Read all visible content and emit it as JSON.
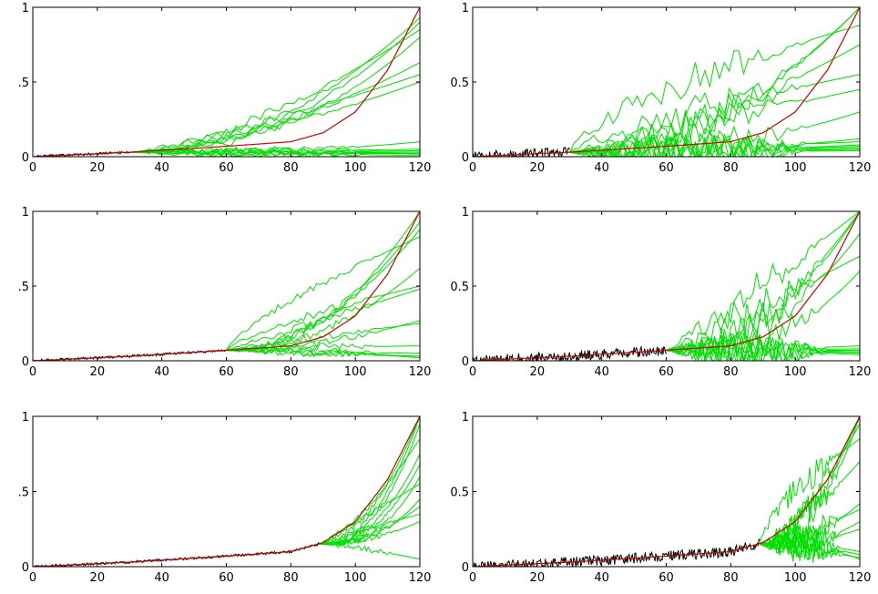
{
  "figure": {
    "colors": {
      "observed": "#000000",
      "true_curve": "#cc0000",
      "forecasts": "#00e000",
      "axes": "#000000"
    }
  },
  "chart_data": [
    {
      "type": "line",
      "panel": "top-left",
      "xlim": [
        0,
        120
      ],
      "ylim": [
        0,
        1
      ],
      "xticks": [
        "0",
        "20",
        "40",
        "60",
        "80",
        "100",
        "120"
      ],
      "yticks": [
        "0",
        ".5",
        "1"
      ],
      "observed": {
        "x_end": 30,
        "noise": 0.008
      },
      "true_curve": {
        "x": [
          0,
          30,
          60,
          80,
          90,
          100,
          110,
          120
        ],
        "y": [
          0.0,
          0.03,
          0.07,
          0.1,
          0.16,
          0.3,
          0.58,
          1.0
        ]
      },
      "forecast_start": {
        "x": 30,
        "y": 0.03
      },
      "forecast_endpoints": [
        0.93,
        0.9,
        0.85,
        0.8,
        0.63,
        0.55,
        0.5,
        0.1,
        0.05,
        0.04,
        0.03,
        0.03,
        0.02,
        0.02,
        0.02,
        0.01
      ],
      "forecast_noise": 0.03
    },
    {
      "type": "line",
      "panel": "top-right",
      "xlim": [
        0,
        120
      ],
      "ylim": [
        0,
        1
      ],
      "xticks": [
        "0",
        "20",
        "40",
        "60",
        "80",
        "100",
        "120"
      ],
      "yticks": [
        "0",
        "0.5",
        "1"
      ],
      "observed": {
        "x_end": 30,
        "noise": 0.035
      },
      "true_curve": {
        "x": [
          0,
          30,
          60,
          80,
          90,
          100,
          110,
          120
        ],
        "y": [
          0.0,
          0.03,
          0.07,
          0.1,
          0.16,
          0.3,
          0.58,
          1.0
        ]
      },
      "forecast_start": {
        "x": 30,
        "y": 0.03
      },
      "forecast_endpoints": [
        1.0,
        1.0,
        0.88,
        0.75,
        0.55,
        0.45,
        0.3,
        0.12,
        0.1,
        0.08,
        0.07,
        0.06,
        0.05,
        0.05,
        0.04
      ],
      "forecast_noise": 0.12
    },
    {
      "type": "line",
      "panel": "middle-left",
      "xlim": [
        0,
        120
      ],
      "ylim": [
        0,
        1
      ],
      "xticks": [
        "0",
        "20",
        "40",
        "60",
        "80",
        "100",
        "120"
      ],
      "yticks": [
        "0",
        ".5",
        "1"
      ],
      "observed": {
        "x_end": 60,
        "noise": 0.008
      },
      "true_curve": {
        "x": [
          0,
          30,
          60,
          80,
          90,
          100,
          110,
          120
        ],
        "y": [
          0.0,
          0.03,
          0.07,
          0.1,
          0.16,
          0.3,
          0.58,
          1.0
        ]
      },
      "forecast_start": {
        "x": 60,
        "y": 0.07
      },
      "forecast_endpoints": [
        1.0,
        0.93,
        0.88,
        0.83,
        0.62,
        0.5,
        0.48,
        0.27,
        0.25,
        0.1,
        0.05,
        0.03,
        0.03,
        0.02
      ],
      "forecast_noise": 0.03
    },
    {
      "type": "line",
      "panel": "middle-right",
      "xlim": [
        0,
        120
      ],
      "ylim": [
        0,
        1
      ],
      "xticks": [
        "0",
        "20",
        "40",
        "60",
        "80",
        "100",
        "120"
      ],
      "yticks": [
        "0",
        "0.5",
        "1"
      ],
      "observed": {
        "x_end": 60,
        "noise": 0.035
      },
      "true_curve": {
        "x": [
          0,
          30,
          60,
          80,
          90,
          100,
          110,
          120
        ],
        "y": [
          0.0,
          0.03,
          0.07,
          0.1,
          0.16,
          0.3,
          0.58,
          1.0
        ]
      },
      "forecast_start": {
        "x": 60,
        "y": 0.07
      },
      "forecast_endpoints": [
        1.0,
        1.0,
        1.0,
        0.85,
        0.7,
        0.6,
        0.1,
        0.08,
        0.07,
        0.06,
        0.06,
        0.05,
        0.04
      ],
      "forecast_noise": 0.12
    },
    {
      "type": "line",
      "panel": "bottom-left",
      "xlim": [
        0,
        120
      ],
      "ylim": [
        0,
        1
      ],
      "xticks": [
        "0",
        "20",
        "40",
        "60",
        "80",
        "100",
        "120"
      ],
      "yticks": [
        "0",
        ".5",
        "1"
      ],
      "observed": {
        "x_end": 89,
        "noise": 0.008
      },
      "true_curve": {
        "x": [
          0,
          30,
          60,
          80,
          90,
          100,
          110,
          120
        ],
        "y": [
          0.0,
          0.03,
          0.07,
          0.1,
          0.16,
          0.3,
          0.58,
          1.0
        ]
      },
      "forecast_start": {
        "x": 89,
        "y": 0.15
      },
      "forecast_endpoints": [
        1.0,
        1.0,
        0.95,
        0.85,
        0.75,
        0.68,
        0.6,
        0.55,
        0.45,
        0.4,
        0.35,
        0.3,
        0.05
      ],
      "forecast_noise": 0.02
    },
    {
      "type": "line",
      "panel": "bottom-right",
      "xlim": [
        0,
        120
      ],
      "ylim": [
        0,
        1
      ],
      "xticks": [
        "0",
        "20",
        "40",
        "60",
        "80",
        "100",
        "120"
      ],
      "yticks": [
        "0",
        "0.5",
        "1"
      ],
      "observed": {
        "x_end": 89,
        "noise": 0.035
      },
      "true_curve": {
        "x": [
          0,
          30,
          60,
          80,
          90,
          100,
          110,
          120
        ],
        "y": [
          0.0,
          0.03,
          0.07,
          0.1,
          0.16,
          0.3,
          0.58,
          1.0
        ]
      },
      "forecast_start": {
        "x": 89,
        "y": 0.15
      },
      "forecast_endpoints": [
        1.0,
        1.0,
        0.95,
        0.85,
        0.7,
        0.42,
        0.38,
        0.3,
        0.25,
        0.1,
        0.08,
        0.06,
        0.05
      ],
      "forecast_noise": 0.1
    }
  ]
}
